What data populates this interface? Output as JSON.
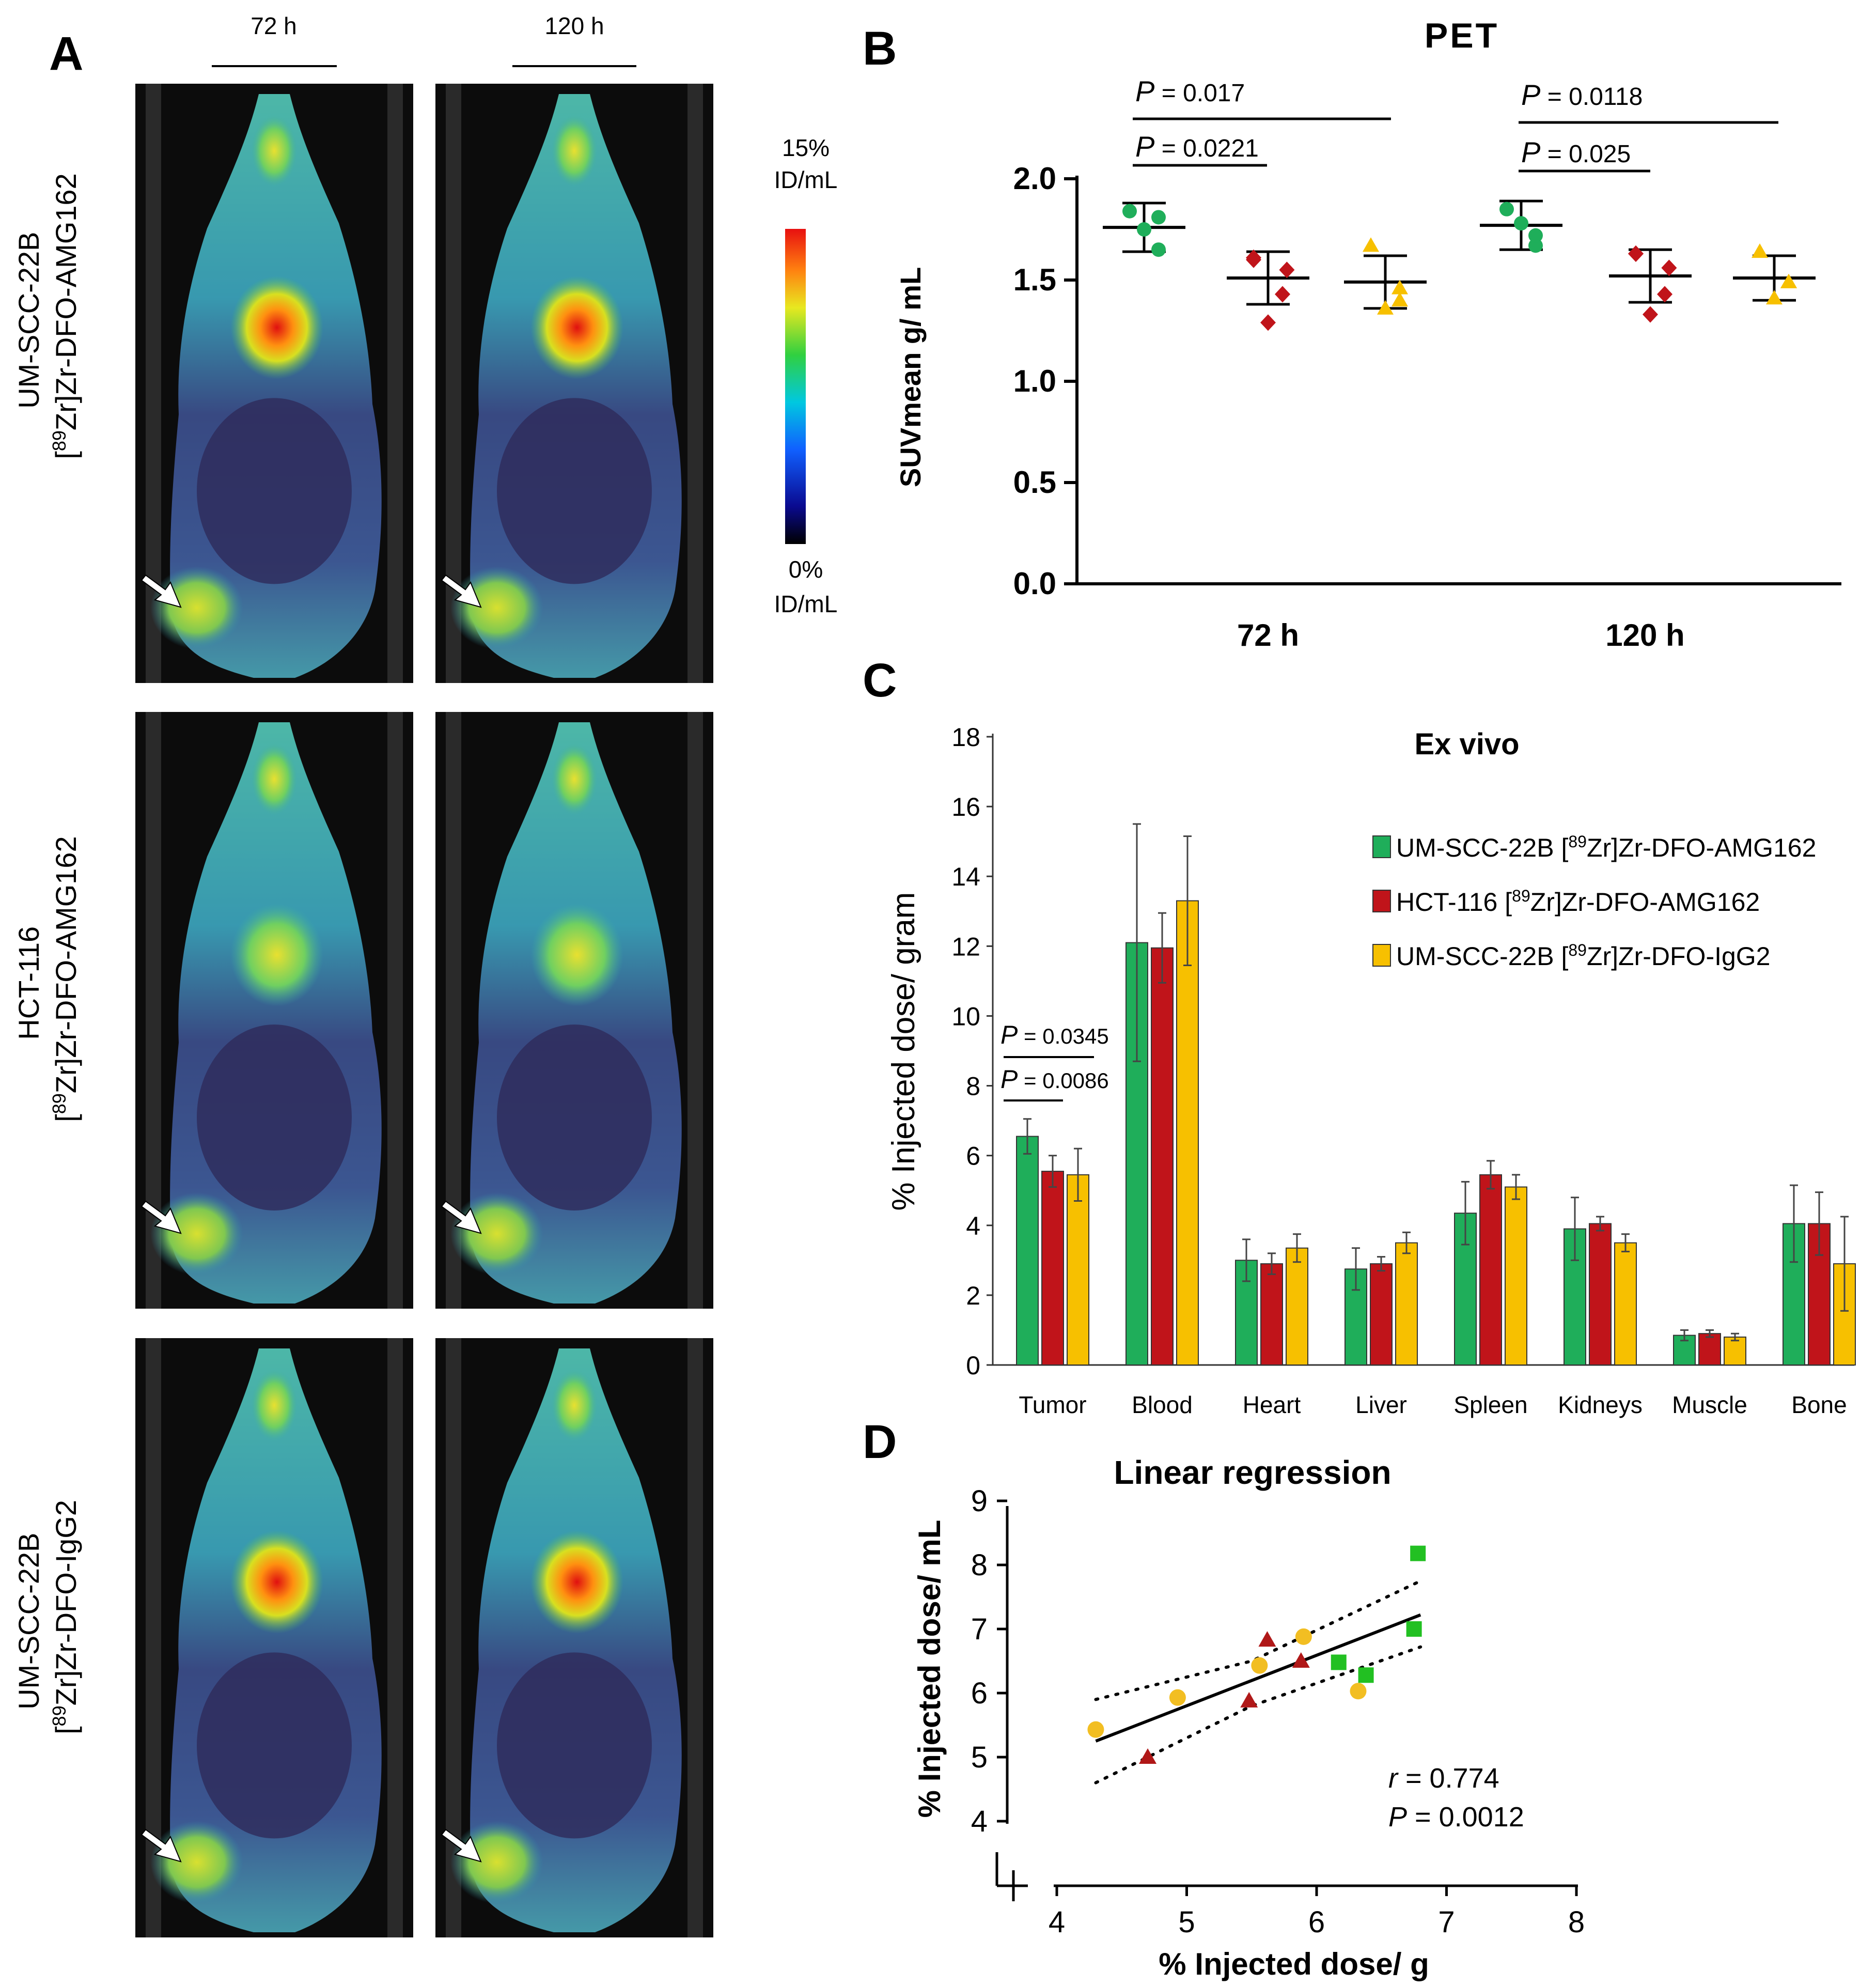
{
  "figure": {
    "panel_letters": {
      "a": "A",
      "b": "B",
      "c": "C",
      "d": "D"
    }
  },
  "panel_a": {
    "time_labels": [
      "72 h",
      "120 h"
    ],
    "row_labels": [
      {
        "line1": "UM-SCC-22B",
        "line2_prefix": "[",
        "line2_sup": "89",
        "line2_rest": "Zr]Zr-DFO-AMG162"
      },
      {
        "line1": "HCT-116",
        "line2_prefix": "[",
        "line2_sup": "89",
        "line2_rest": "Zr]Zr-DFO-AMG162"
      },
      {
        "line1": "UM-SCC-22B",
        "line2_prefix": "[",
        "line2_sup": "89",
        "line2_rest": "Zr]Zr-DFO-IgG2"
      }
    ],
    "colorbar": {
      "max_label": "15%",
      "max_unit": "ID/mL",
      "min_label": "0%",
      "min_unit": "ID/mL"
    },
    "tumor_arrow_icon": "arrow-icon"
  },
  "chart_data": [
    {
      "id": "pet",
      "type": "scatter",
      "title": "PET",
      "ylabel": "SUVmean g/ mL",
      "xlabel": "",
      "ylim": [
        0,
        2
      ],
      "yticks": [
        "0.0",
        "0.5",
        "1.0",
        "1.5",
        "2.0"
      ],
      "categories": [
        "72 h",
        "120 h"
      ],
      "series": [
        {
          "name": "UM-SCC-22B [89Zr]Zr-DFO-AMG162",
          "color": "#1fae5a",
          "marker": "circle",
          "mean": [
            1.76,
            1.77
          ],
          "sd": [
            0.12,
            0.12
          ],
          "points": [
            [
              1.84,
              1.65,
              1.75,
              1.81
            ],
            [
              1.85,
              1.67,
              1.78,
              1.72
            ]
          ]
        },
        {
          "name": "HCT-116 [89Zr]Zr-DFO-AMG162",
          "color": "#c0141a",
          "marker": "diamond",
          "mean": [
            1.51,
            1.52
          ],
          "sd": [
            0.13,
            0.13
          ],
          "points": [
            [
              1.6,
              1.55,
              1.29,
              1.43,
              1.61
            ],
            [
              1.63,
              1.56,
              1.33,
              1.43,
              1.63
            ]
          ]
        },
        {
          "name": "UM-SCC-22B [89Zr]Zr-DFO-IgG2",
          "color": "#f7c000",
          "marker": "triangle",
          "mean": [
            1.49,
            1.51
          ],
          "sd": [
            0.13,
            0.11
          ],
          "points": [
            [
              1.67,
              1.4,
              1.36,
              1.46
            ],
            [
              1.64,
              1.49,
              1.41,
              1.49
            ]
          ]
        }
      ],
      "significance": [
        {
          "label_p": "P",
          "label_value": " = 0.017"
        },
        {
          "label_p": "P",
          "label_value": " = 0.0221"
        },
        {
          "label_p": "P",
          "label_value": " = 0.0118"
        },
        {
          "label_p": "P",
          "label_value": " = 0.025"
        }
      ]
    },
    {
      "id": "exvivo",
      "type": "bar",
      "title": "Ex vivo",
      "ylabel": "% Injected dose/ gram",
      "ylim": [
        0,
        18
      ],
      "yticks": [
        "0",
        "2",
        "4",
        "6",
        "8",
        "10",
        "12",
        "14",
        "16",
        "18"
      ],
      "categories": [
        "Tumor",
        "Blood",
        "Heart",
        "Liver",
        "Spleen",
        "Kidneys",
        "Muscle",
        "Bone"
      ],
      "series": [
        {
          "name": "UM-SCC-22B [89Zr]Zr-DFO-AMG162",
          "legend_pre": "UM-SCC-22B [",
          "legend_sup": "89",
          "legend_post": "Zr]Zr-DFO-AMG162",
          "color": "#1fae5a",
          "values": [
            6.55,
            12.1,
            3.0,
            2.75,
            4.35,
            3.9,
            0.85,
            4.05
          ],
          "err": [
            0.5,
            3.4,
            0.6,
            0.6,
            0.9,
            0.9,
            0.15,
            1.1
          ]
        },
        {
          "name": "HCT-116 [89Zr]Zr-DFO-AMG162",
          "legend_pre": "HCT-116 [",
          "legend_sup": "89",
          "legend_post": "Zr]Zr-DFO-AMG162",
          "color": "#c0141a",
          "values": [
            5.55,
            11.95,
            2.9,
            2.9,
            5.45,
            4.05,
            0.9,
            4.05
          ],
          "err": [
            0.45,
            1.0,
            0.3,
            0.2,
            0.4,
            0.2,
            0.1,
            0.9
          ]
        },
        {
          "name": "UM-SCC-22B [89Zr]Zr-DFO-IgG2",
          "legend_pre": "UM-SCC-22B [",
          "legend_sup": "89",
          "legend_post": "Zr]Zr-DFO-IgG2",
          "color": "#f7c000",
          "values": [
            5.45,
            13.3,
            3.35,
            3.5,
            5.1,
            3.5,
            0.8,
            2.9
          ],
          "err": [
            0.75,
            1.85,
            0.4,
            0.3,
            0.35,
            0.25,
            0.1,
            1.35
          ]
        }
      ],
      "significance": [
        {
          "label_p": "P",
          "label_value": " = 0.0345"
        },
        {
          "label_p": "P",
          "label_value": " = 0.0086"
        }
      ]
    },
    {
      "id": "regression",
      "type": "scatter",
      "title": "Linear regression",
      "xlabel": "% Injected dose/ g",
      "ylabel": "% Injected dose/ mL",
      "xlim": [
        4,
        8
      ],
      "ylim": [
        4,
        9
      ],
      "xticks": [
        "4",
        "5",
        "6",
        "7",
        "8"
      ],
      "yticks": [
        "4",
        "5",
        "6",
        "7",
        "8",
        "9"
      ],
      "series": [
        {
          "name": "UM-SCC-22B [89Zr]Zr-DFO-AMG162",
          "color": "#22c022",
          "marker": "square",
          "x": [
            6.78,
            6.75,
            6.17,
            6.38
          ],
          "y": [
            8.18,
            7.0,
            6.48,
            6.28
          ]
        },
        {
          "name": "HCT-116 [89Zr]Zr-DFO-AMG162",
          "color": "#b01818",
          "marker": "triangle",
          "x": [
            4.7,
            5.48,
            5.62,
            5.88
          ],
          "y": [
            5.0,
            5.88,
            6.83,
            6.5
          ]
        },
        {
          "name": "UM-SCC-22B [89Zr]Zr-DFO-IgG2",
          "color": "#f2be22",
          "marker": "circle",
          "x": [
            4.3,
            4.93,
            5.56,
            5.9,
            6.32
          ],
          "y": [
            5.43,
            5.93,
            6.43,
            6.88,
            6.03
          ]
        }
      ],
      "fit": {
        "x": [
          4.3,
          6.8
        ],
        "y": [
          5.25,
          7.22
        ]
      },
      "ci_upper": {
        "x": [
          4.3,
          5.5,
          6.8
        ],
        "y": [
          5.9,
          6.5,
          7.75
        ]
      },
      "ci_lower": {
        "x": [
          4.3,
          5.5,
          6.8
        ],
        "y": [
          4.6,
          5.8,
          6.72
        ]
      },
      "stats": {
        "r_label": "r",
        "r_value": " = 0.774",
        "p_label": "P",
        "p_value": " = 0.0012"
      }
    }
  ]
}
